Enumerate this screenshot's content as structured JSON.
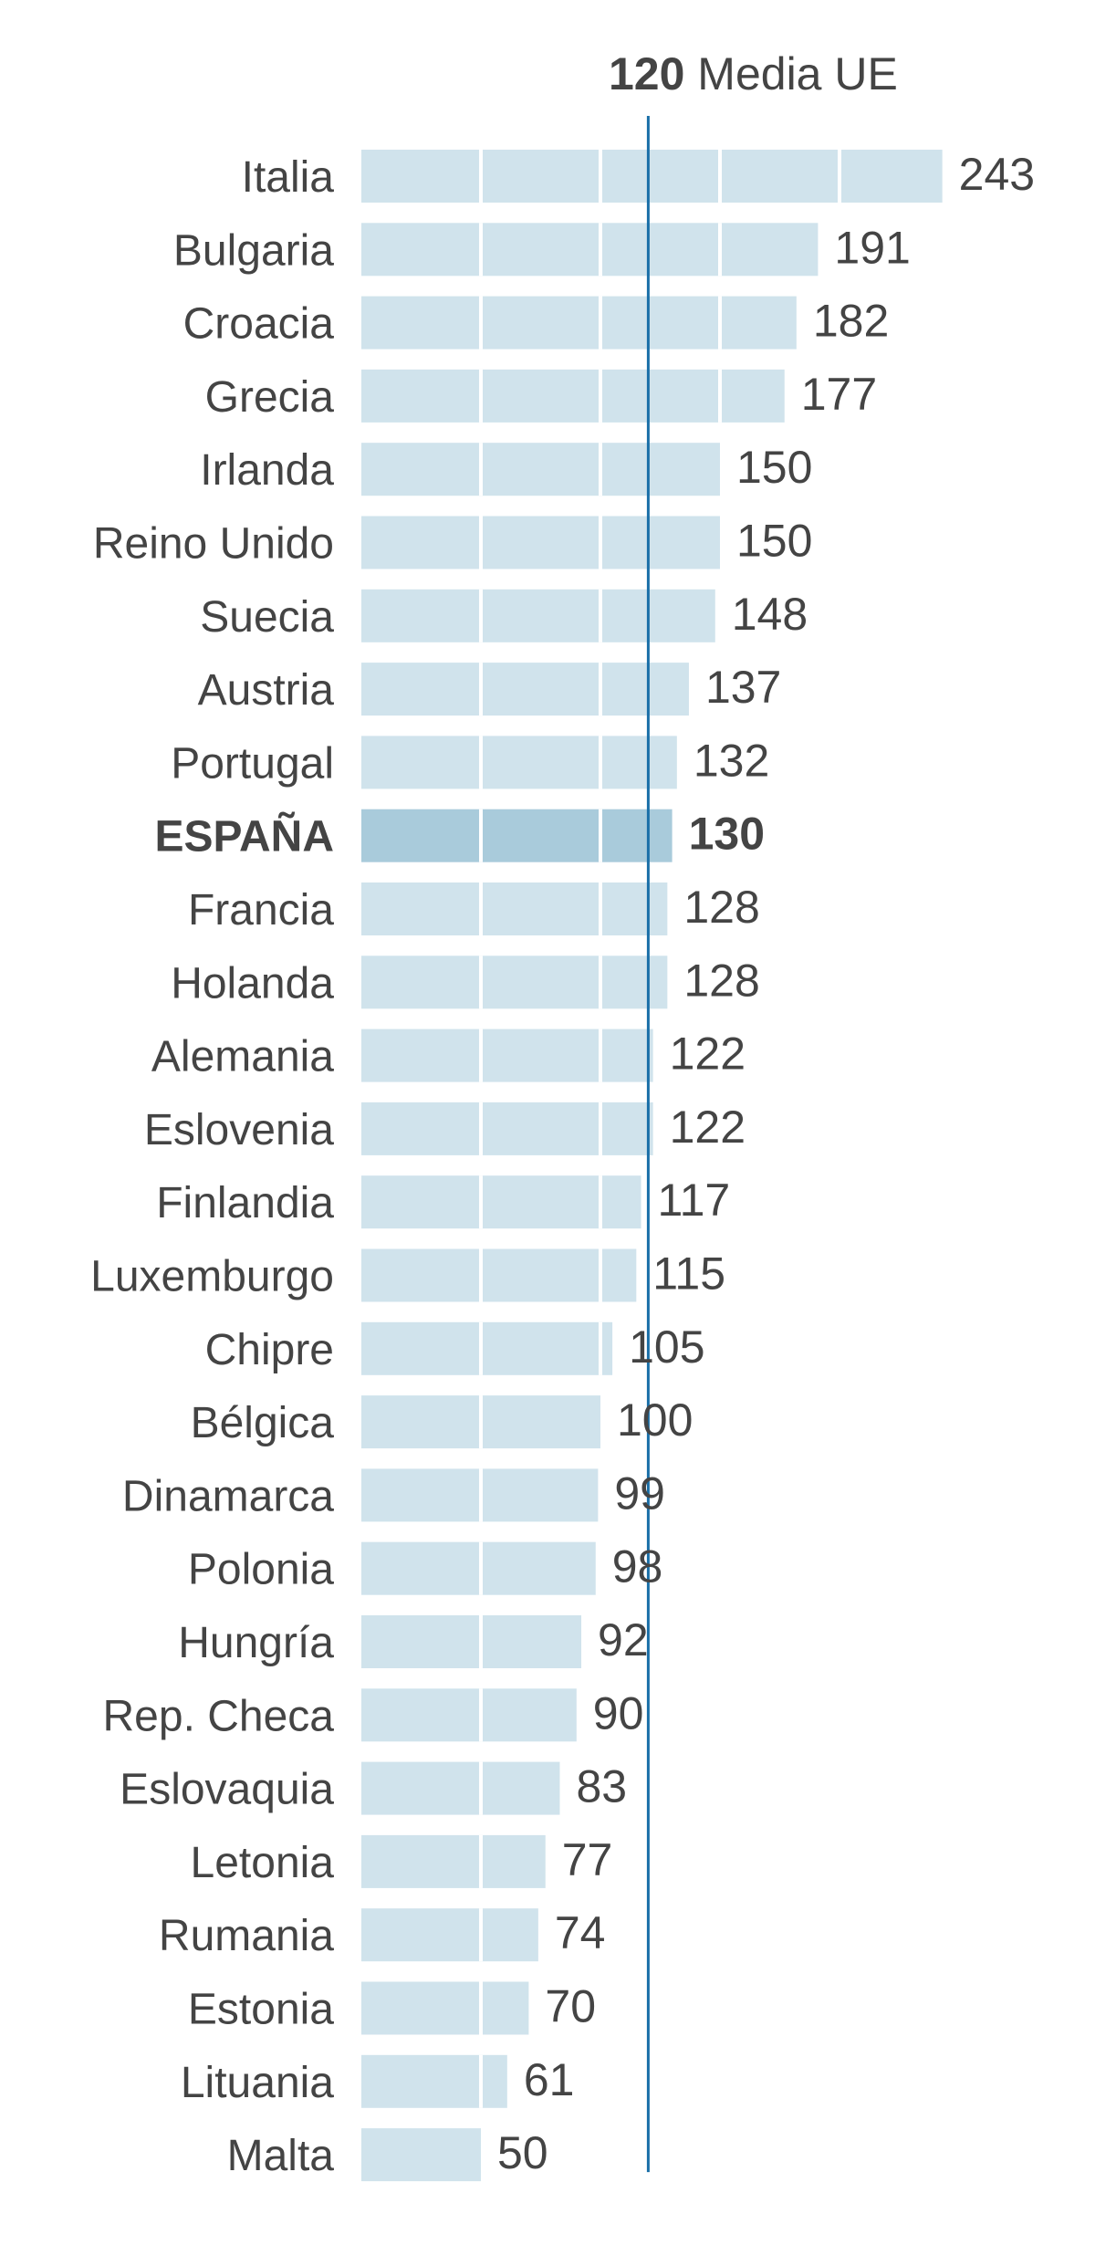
{
  "chart_data": {
    "type": "bar",
    "orientation": "horizontal",
    "categories": [
      "Italia",
      "Bulgaria",
      "Croacia",
      "Grecia",
      "Irlanda",
      "Reino Unido",
      "Suecia",
      "Austria",
      "Portugal",
      "ESPAÑA",
      "Francia",
      "Holanda",
      "Alemania",
      "Eslovenia",
      "Finlandia",
      "Luxemburgo",
      "Chipre",
      "Bélgica",
      "Dinamarca",
      "Polonia",
      "Hungría",
      "Rep. Checa",
      "Eslovaquia",
      "Letonia",
      "Rumania",
      "Estonia",
      "Lituania",
      "Malta"
    ],
    "values": [
      243,
      191,
      182,
      177,
      150,
      150,
      148,
      137,
      132,
      130,
      128,
      128,
      122,
      122,
      117,
      115,
      105,
      100,
      99,
      98,
      92,
      90,
      83,
      77,
      74,
      70,
      61,
      50
    ],
    "highlight": "ESPAÑA",
    "reference_line": {
      "value": 120,
      "value_label": "120",
      "label": "Media UE"
    },
    "xlim": [
      0,
      250
    ],
    "grid_step": 50,
    "colors": {
      "bar": "#d0e3ec",
      "highlight": "#a9cbdb",
      "reference": "#1a6fa8",
      "text": "#444444"
    }
  }
}
